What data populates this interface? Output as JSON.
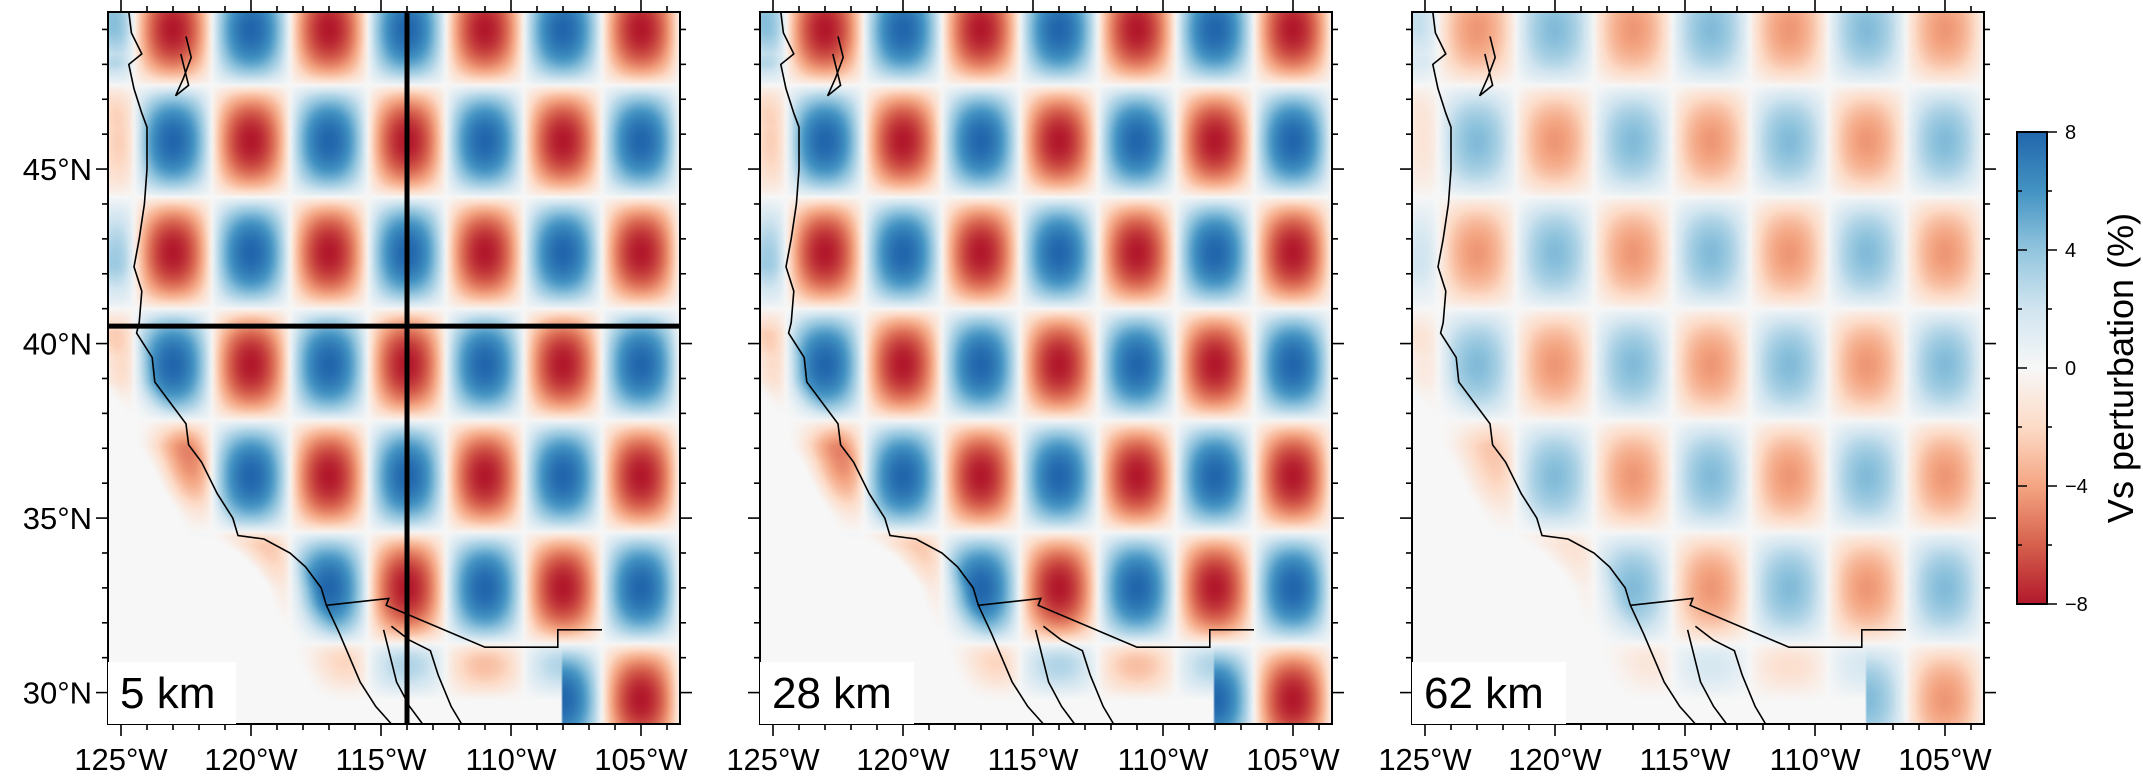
{
  "figure": {
    "panels": [
      {
        "depth_label": "5 km",
        "amplitude": 1.0,
        "show_profile_lines": true
      },
      {
        "depth_label": "28 km",
        "amplitude": 1.0,
        "show_profile_lines": false
      },
      {
        "depth_label": "62 km",
        "amplitude": 0.55,
        "show_profile_lines": false
      }
    ],
    "x_axis": {
      "range_deg": [
        -125.5,
        -103.5
      ],
      "ticks": [
        {
          "value": -125,
          "label": "125°W"
        },
        {
          "value": -120,
          "label": "120°W"
        },
        {
          "value": -115,
          "label": "115°W"
        },
        {
          "value": -110,
          "label": "110°W"
        },
        {
          "value": -105,
          "label": "105°W"
        }
      ]
    },
    "y_axis": {
      "range_deg": [
        29.1,
        49.5
      ],
      "ticks": [
        {
          "value": 30,
          "label": "30°N"
        },
        {
          "value": 35,
          "label": "35°N"
        },
        {
          "value": 40,
          "label": "40°N"
        },
        {
          "value": 45,
          "label": "45°N"
        }
      ]
    },
    "profile_lines": {
      "lon": -114,
      "lat": 40.5
    },
    "colorbar": {
      "title": "Vs perturbation (%)",
      "range": [
        -8,
        8
      ],
      "ticks": [
        {
          "value": 8,
          "label": "8"
        },
        {
          "value": 4,
          "label": "4"
        },
        {
          "value": 0,
          "label": "0"
        },
        {
          "value": -4,
          "label": "−4"
        },
        {
          "value": -8,
          "label": "−8"
        }
      ],
      "colors": [
        "#b2182b",
        "#d6604d",
        "#f4a582",
        "#fddbc7",
        "#f7f7f7",
        "#d1e5f0",
        "#92c5de",
        "#4393c3",
        "#2166ac"
      ]
    }
  }
}
